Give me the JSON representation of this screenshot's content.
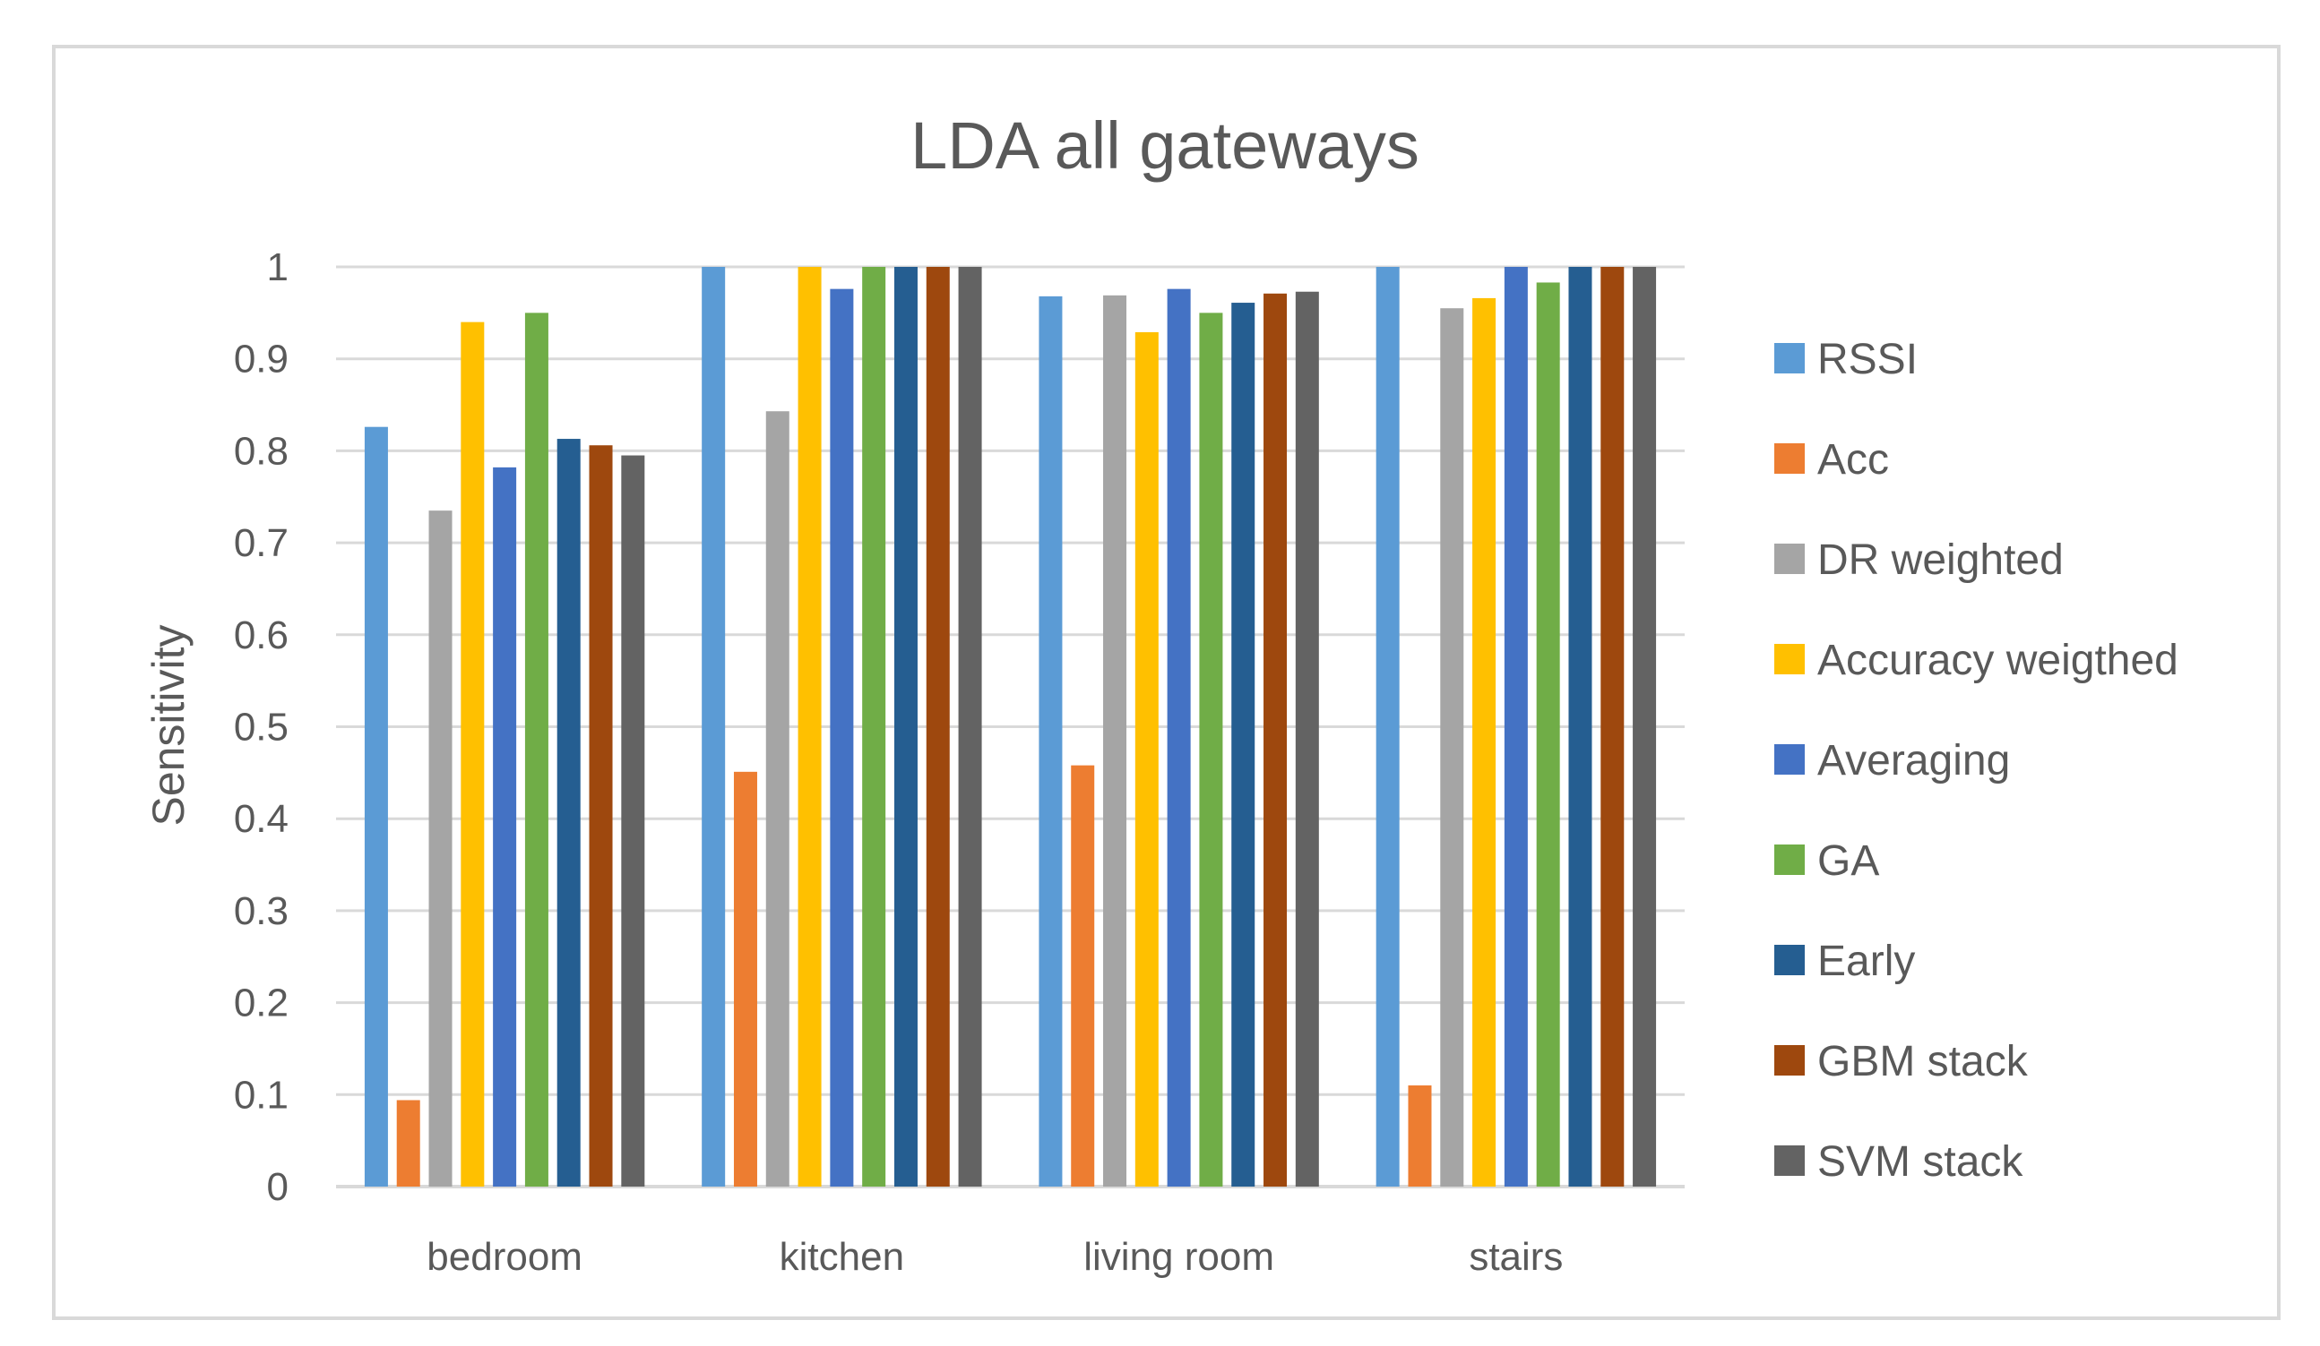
{
  "chart_data": {
    "type": "bar",
    "title": "LDA all gateways",
    "xlabel": "",
    "ylabel": "Sensitivity",
    "ylim": [
      0,
      1
    ],
    "yticks": [
      "0",
      "0.1",
      "0.2",
      "0.3",
      "0.4",
      "0.5",
      "0.6",
      "0.7",
      "0.8",
      "0.9",
      "1"
    ],
    "grid": true,
    "legend_position": "right",
    "categories": [
      "bedroom",
      "kitchen",
      "living room",
      "stairs"
    ],
    "series": [
      {
        "name": "RSSI",
        "color": "#5B9BD5",
        "values": [
          0.826,
          1.0,
          0.968,
          1.0
        ]
      },
      {
        "name": "Acc",
        "color": "#ED7D31",
        "values": [
          0.094,
          0.451,
          0.458,
          0.11
        ]
      },
      {
        "name": "DR weighted",
        "color": "#A5A5A5",
        "values": [
          0.735,
          0.843,
          0.969,
          0.955
        ]
      },
      {
        "name": "Accuracy weigthed",
        "color": "#FFC000",
        "values": [
          0.94,
          1.0,
          0.929,
          0.966
        ]
      },
      {
        "name": "Averaging",
        "color": "#4472C4",
        "values": [
          0.782,
          0.976,
          0.976,
          1.0
        ]
      },
      {
        "name": "GA",
        "color": "#70AD47",
        "values": [
          0.95,
          1.0,
          0.95,
          0.983
        ]
      },
      {
        "name": "Early",
        "color": "#255E91",
        "values": [
          0.813,
          1.0,
          0.961,
          1.0
        ]
      },
      {
        "name": "GBM stack",
        "color": "#9E480E",
        "values": [
          0.806,
          1.0,
          0.971,
          1.0
        ]
      },
      {
        "name": "SVM stack",
        "color": "#636363",
        "values": [
          0.795,
          1.0,
          0.973,
          1.0
        ]
      }
    ]
  }
}
